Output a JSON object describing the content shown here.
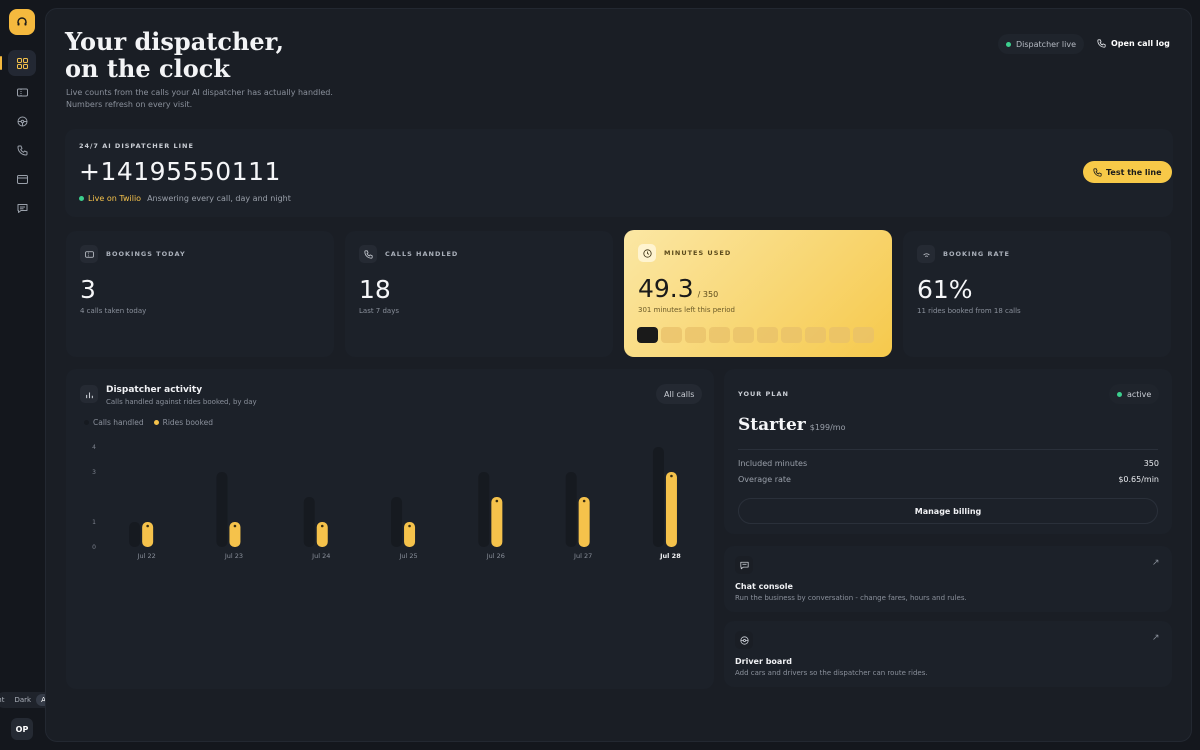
{
  "sidebar": {
    "items": [
      {
        "icon": "grid-icon",
        "active": true
      },
      {
        "icon": "ticket-icon",
        "active": false
      },
      {
        "icon": "steering-wheel-icon",
        "active": false
      },
      {
        "icon": "phone-icon",
        "active": false
      },
      {
        "icon": "credit-card-icon",
        "active": false
      },
      {
        "icon": "chat-icon",
        "active": false
      }
    ],
    "theme": {
      "options": [
        "Light",
        "Dark",
        "Auto"
      ],
      "selected": "Auto"
    },
    "avatar_initials": "OP"
  },
  "header": {
    "title_line1": "Your dispatcher,",
    "title_line2": "on the clock",
    "subtitle_line1": "Live counts from the calls your AI dispatcher has actually handled.",
    "subtitle_line2": "Numbers refresh on every visit.",
    "status_label": "Dispatcher live",
    "open_log_label": "Open call log"
  },
  "line": {
    "kicker": "24/7 AI DISPATCHER LINE",
    "number": "+14195550111",
    "live_label": "Live on Twilio",
    "status_text": "Answering every call, day and night",
    "test_button": "Test the line"
  },
  "stats": [
    {
      "label": "BOOKINGS TODAY",
      "value": "3",
      "sub": "4 calls taken today",
      "icon": "ticket-icon"
    },
    {
      "label": "CALLS HANDLED",
      "value": "18",
      "sub": "Last 7 days",
      "icon": "phone-icon"
    },
    {
      "label": "MINUTES USED",
      "value": "49.3",
      "total": "/ 350",
      "sub": "301 minutes left this period",
      "icon": "clock-icon",
      "usage_fraction": 0.141,
      "segments": 10,
      "segments_filled": 1
    },
    {
      "label": "BOOKING RATE",
      "value": "61%",
      "sub": "11 rides booked from 18 calls",
      "icon": "signal-icon"
    }
  ],
  "activity": {
    "title": "Dispatcher activity",
    "subtitle": "Calls handled against rides booked, by day",
    "filter_label": "All calls",
    "legend": [
      {
        "name": "Calls handled",
        "color": "#161a20"
      },
      {
        "name": "Rides booked",
        "color": "#f5c24b"
      }
    ]
  },
  "chart_data": {
    "type": "bar",
    "title": "Dispatcher activity",
    "categories": [
      "Jul 22",
      "Jul 23",
      "Jul 24",
      "Jul 25",
      "Jul 26",
      "Jul 27",
      "Jul 28"
    ],
    "highlight_category": "Jul 28",
    "series": [
      {
        "name": "Calls handled",
        "values": [
          1,
          3,
          2,
          2,
          3,
          3,
          4
        ],
        "color": "#161a20"
      },
      {
        "name": "Rides booked",
        "values": [
          1,
          1,
          1,
          1,
          2,
          2,
          3
        ],
        "color": "#f5c24b"
      }
    ],
    "yticks": [
      0,
      1,
      3,
      4
    ],
    "ylim": [
      0,
      4
    ],
    "legend_position": "top-left",
    "grid": false
  },
  "plan": {
    "kicker": "YOUR PLAN",
    "status": "active",
    "name": "Starter",
    "price": "$199/mo",
    "rows": [
      {
        "label": "Included minutes",
        "value": "350"
      },
      {
        "label": "Overage rate",
        "value": "$0.65/min"
      }
    ],
    "billing_button": "Manage billing"
  },
  "links": [
    {
      "title": "Chat console",
      "sub": "Run the business by conversation - change fares, hours and rules.",
      "icon": "chat-icon"
    },
    {
      "title": "Driver board",
      "sub": "Add cars and drivers so the dispatcher can route rides.",
      "icon": "steering-wheel-icon"
    }
  ],
  "colors": {
    "accent": "#f5c24b",
    "live": "#3ccf8e",
    "panel": "#1c2129",
    "background": "#14171d"
  }
}
